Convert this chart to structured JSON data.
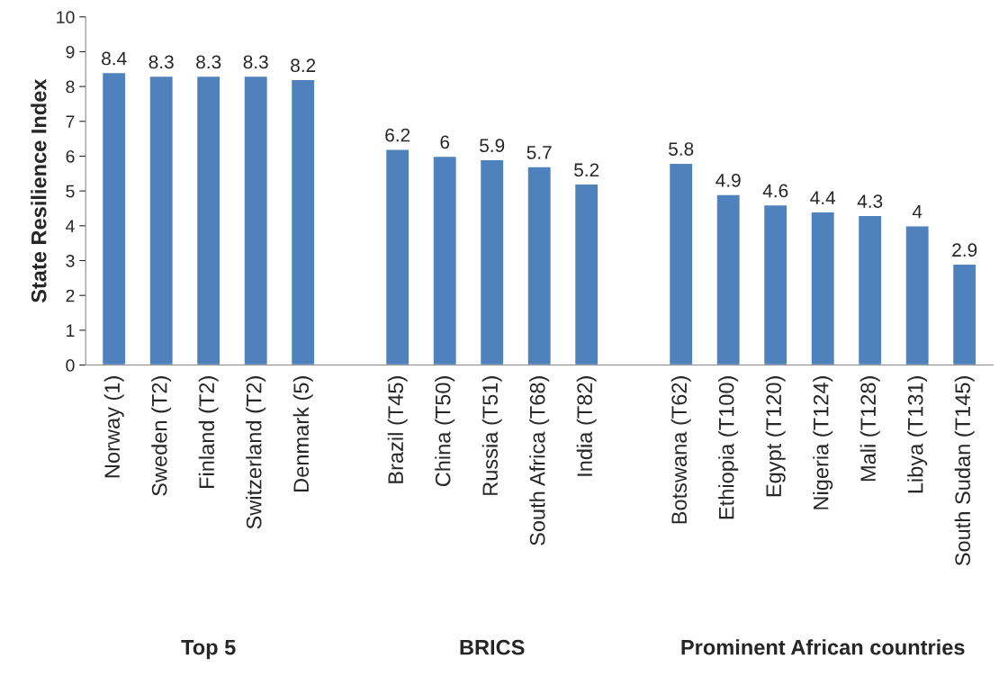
{
  "chart_data": {
    "type": "bar",
    "ylabel": "State Resilience Index",
    "categories": [
      "Norway (1)",
      "Sweden (T2)",
      "Finland (T2)",
      "Switzerland (T2)",
      "Denmark (5)",
      null,
      "Brazil (T45)",
      "China (T50)",
      "Russia (T51)",
      "South Africa (T68)",
      "India (T82)",
      null,
      "Botswana (T62)",
      "Ethiopia (T100)",
      "Egypt (T120)",
      "Nigeria (T124)",
      "Mali (T128)",
      "Libya (T131)",
      "South Sudan (T145)"
    ],
    "values": [
      8.4,
      8.3,
      8.3,
      8.3,
      8.2,
      null,
      6.2,
      6,
      5.9,
      5.7,
      5.2,
      null,
      5.8,
      4.9,
      4.6,
      4.4,
      4.3,
      4,
      2.9
    ],
    "color": "#4f81bd",
    "ylim": [
      0,
      10
    ],
    "yticks": [
      0,
      1,
      2,
      3,
      4,
      5,
      6,
      7,
      8,
      9,
      10
    ],
    "grid": false,
    "data_labels": true,
    "annotations": [
      "Top 5",
      "BRICS",
      "Prominent African countries"
    ]
  }
}
